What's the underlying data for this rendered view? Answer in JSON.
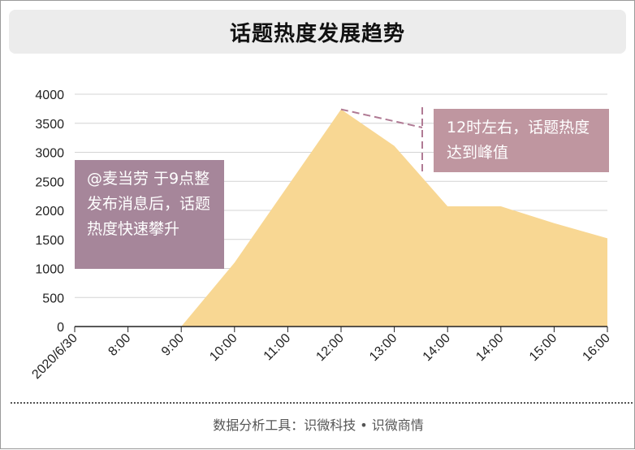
{
  "title": "话题热度发展趋势",
  "footer": "数据分析工具：识微科技 • 识微商情",
  "callouts": {
    "left": "@麦当劳 于9点整发布消息后，话题热度快速攀升",
    "right": "12时左右，话题热度达到峰值"
  },
  "colors": {
    "area": "#f8d793",
    "callout_left": "#a6869a",
    "callout_right": "#bf96a0",
    "dash": "#b07a94",
    "grid": "#d4d4d4"
  },
  "chart_data": {
    "type": "area",
    "title": "话题热度发展趋势",
    "categories": [
      "2020/6/30",
      "8:00",
      "9:00",
      "10:00",
      "11:00",
      "12:00",
      "13:00",
      "14:00",
      "14:00",
      "15:00",
      "16:00"
    ],
    "series": [
      {
        "values": [
          0,
          0,
          0,
          1100,
          2420,
          3740,
          3110,
          2070,
          2070,
          1780,
          1520
        ]
      }
    ],
    "yticks": [
      0,
      500,
      1000,
      1500,
      2000,
      2500,
      3000,
      3500,
      4000
    ],
    "ylim": [
      0,
      4000
    ],
    "grid": true,
    "legend": "none"
  }
}
